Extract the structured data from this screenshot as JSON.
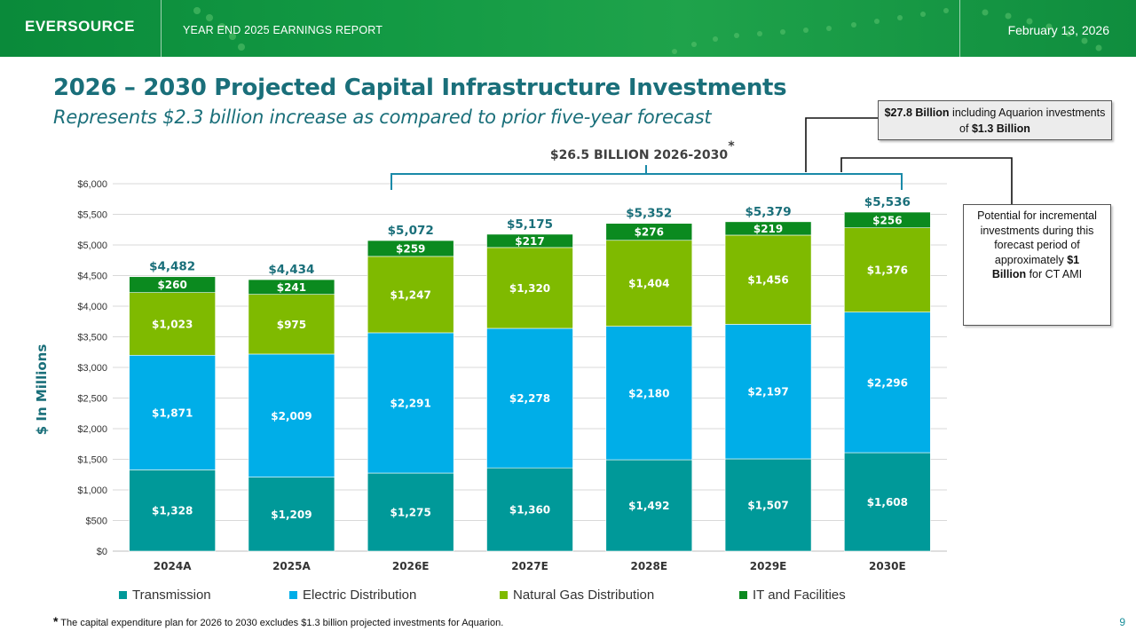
{
  "header": {
    "logo": "EVERSOURCE",
    "report_title": "YEAR END 2025 EARNINGS REPORT",
    "date": "February 13, 2026"
  },
  "title": "2026 – 2030 Projected Capital Infrastructure Investments",
  "subtitle": "Represents $2.3 billion increase as compared to prior five-year forecast",
  "bracket_label": "$26.5 BILLION 2026-2030",
  "bracket_star": "*",
  "callout_top": {
    "bold1": "$27.8 Billion",
    "text1": " including Aquarion investments of ",
    "bold2": "$1.3 Billion"
  },
  "callout_right": {
    "text": "Potential for incremental investments during this forecast period of approximately ",
    "bold1": "$1",
    "bold2": "Billion",
    "text2": " for CT AMI"
  },
  "footnote": {
    "star": "*",
    "text": " The capital expenditure plan for 2026 to 2030 excludes $1.3 billion projected investments for Aquarion."
  },
  "page_number": "9",
  "colors": {
    "transmission": "#009999",
    "distribution": "#00aee8",
    "gas": "#7fba00",
    "it": "#0b8a1f",
    "total": "#1a6f7a"
  },
  "chart_data": {
    "type": "bar",
    "stacked": true,
    "ylabel": "$ In Millions",
    "ylim": [
      0,
      6000
    ],
    "ytick_step": 500,
    "yticks": [
      "$0",
      "$500",
      "$1,000",
      "$1,500",
      "$2,000",
      "$2,500",
      "$3,000",
      "$3,500",
      "$4,000",
      "$4,500",
      "$5,000",
      "$5,500",
      "$6,000"
    ],
    "categories": [
      "2024A",
      "2025A",
      "2026E",
      "2027E",
      "2028E",
      "2029E",
      "2030E"
    ],
    "series": [
      {
        "name": "Transmission",
        "color_key": "transmission",
        "values": [
          1328,
          1209,
          1275,
          1360,
          1492,
          1507,
          1608
        ],
        "labels": [
          "$1,328",
          "$1,209",
          "$1,275",
          "$1,360",
          "$1,492",
          "$1,507",
          "$1,608"
        ]
      },
      {
        "name": "Electric Distribution",
        "color_key": "distribution",
        "values": [
          1871,
          2009,
          2291,
          2278,
          2180,
          2197,
          2296
        ],
        "labels": [
          "$1,871",
          "$2,009",
          "$2,291",
          "$2,278",
          "$2,180",
          "$2,197",
          "$2,296"
        ]
      },
      {
        "name": "Natural Gas Distribution",
        "color_key": "gas",
        "values": [
          1023,
          975,
          1247,
          1320,
          1404,
          1456,
          1376
        ],
        "labels": [
          "$1,023",
          "$975",
          "$1,247",
          "$1,320",
          "$1,404",
          "$1,456",
          "$1,376"
        ]
      },
      {
        "name": "IT and Facilities",
        "color_key": "it",
        "values": [
          260,
          241,
          259,
          217,
          276,
          219,
          256
        ],
        "labels": [
          "$260",
          "$241",
          "$259",
          "$217",
          "$276",
          "$219",
          "$256"
        ]
      }
    ],
    "totals": [
      4482,
      4434,
      5072,
      5175,
      5352,
      5379,
      5536
    ],
    "total_labels": [
      "$4,482",
      "$4,434",
      "$5,072",
      "$5,175",
      "$5,352",
      "$5,379",
      "$5,536"
    ],
    "legend_position": "bottom",
    "grid": true
  }
}
